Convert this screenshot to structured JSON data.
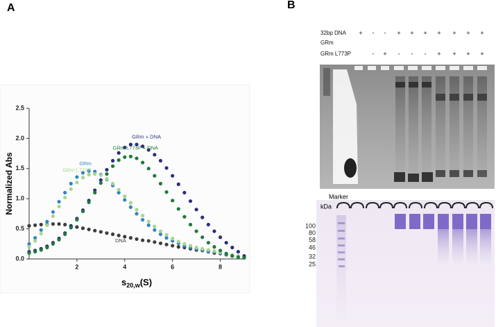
{
  "panel_a": {
    "label": "A"
  },
  "chart_data": {
    "type": "scatter",
    "y_label": "Normalized Abs",
    "x_label": {
      "main": "s",
      "subscript": "20,w",
      "suffix": "(S)"
    },
    "xlim": [
      0,
      9
    ],
    "xticks": [
      2,
      4,
      6,
      8
    ],
    "ylim": [
      0,
      2.5
    ],
    "yticks": [
      {
        "value": 0,
        "label": "0.0"
      },
      0.5,
      {
        "value": 1,
        "label": "1.0"
      },
      1.5,
      {
        "value": 2,
        "label": "2.0"
      },
      2.5
    ],
    "x": [
      0,
      0.25,
      0.5,
      0.75,
      1,
      1.25,
      1.5,
      1.75,
      2,
      2.25,
      2.5,
      2.75,
      3,
      3.25,
      3.5,
      3.75,
      4,
      4.25,
      4.5,
      4.75,
      5,
      5.25,
      5.5,
      5.75,
      6,
      6.25,
      6.5,
      6.75,
      7,
      7.25,
      7.5,
      7.75,
      8,
      8.25,
      8.5,
      8.75,
      9
    ],
    "series": [
      {
        "name": "DNA",
        "color": "#3d3d3d",
        "values": [
          0.55,
          0.56,
          0.57,
          0.57,
          0.58,
          0.58,
          0.57,
          0.55,
          0.53,
          0.51,
          0.49,
          0.47,
          0.45,
          0.43,
          0.41,
          0.39,
          0.37,
          0.35,
          0.33,
          0.31,
          0.3,
          0.28,
          0.26,
          0.24,
          0.22,
          0.2,
          0.19,
          0.17,
          0.15,
          0.14,
          0.12,
          0.1,
          0.09,
          0.07,
          0.05,
          0.04,
          0.03
        ]
      },
      {
        "name": "GRm",
        "color": "#2f86c4",
        "values": [
          0.25,
          0.35,
          0.48,
          0.62,
          0.78,
          0.95,
          1.1,
          1.25,
          1.36,
          1.43,
          1.46,
          1.45,
          1.4,
          1.32,
          1.22,
          1.1,
          0.98,
          0.86,
          0.75,
          0.65,
          0.56,
          0.48,
          0.41,
          0.35,
          0.3,
          0.26,
          0.22,
          0.19,
          0.17,
          0.15,
          0.13,
          0.12,
          0.1,
          0.08,
          0.06,
          0.04,
          0.02
        ]
      },
      {
        "name": "GRm L773P",
        "color": "#a9d48e",
        "values": [
          0.2,
          0.3,
          0.42,
          0.56,
          0.71,
          0.87,
          1.02,
          1.16,
          1.27,
          1.35,
          1.4,
          1.41,
          1.39,
          1.33,
          1.25,
          1.15,
          1.04,
          0.93,
          0.82,
          0.72,
          0.62,
          0.54,
          0.46,
          0.4,
          0.34,
          0.29,
          0.25,
          0.22,
          0.19,
          0.17,
          0.15,
          0.13,
          0.11,
          0.09,
          0.07,
          0.05,
          0.03
        ]
      },
      {
        "name": "GRm + DNA",
        "color": "#2c2f7c",
        "values": [
          0.12,
          0.14,
          0.17,
          0.21,
          0.27,
          0.34,
          0.43,
          0.54,
          0.67,
          0.81,
          0.97,
          1.14,
          1.31,
          1.48,
          1.63,
          1.76,
          1.85,
          1.9,
          1.9,
          1.87,
          1.81,
          1.73,
          1.63,
          1.51,
          1.38,
          1.24,
          1.1,
          0.96,
          0.82,
          0.69,
          0.57,
          0.46,
          0.36,
          0.27,
          0.19,
          0.12,
          0.05
        ]
      },
      {
        "name": "GRm L773P + DNA",
        "color": "#1f7a3b",
        "values": [
          0.1,
          0.12,
          0.15,
          0.19,
          0.25,
          0.32,
          0.41,
          0.52,
          0.65,
          0.79,
          0.94,
          1.1,
          1.26,
          1.41,
          1.54,
          1.64,
          1.69,
          1.7,
          1.67,
          1.6,
          1.5,
          1.38,
          1.25,
          1.11,
          0.97,
          0.83,
          0.7,
          0.57,
          0.46,
          0.36,
          0.27,
          0.2,
          0.14,
          0.09,
          0.05,
          0.03,
          0.02
        ]
      }
    ]
  },
  "panel_b": {
    "label": "B",
    "conditions": [
      {
        "label": "32bp DNA",
        "marks": [
          "+",
          "-",
          "-",
          "+",
          "+",
          "+",
          "+",
          "+",
          "+",
          "+"
        ]
      },
      {
        "label": "GRm",
        "marks": [
          null,
          null,
          null,
          null,
          null,
          null,
          null,
          null,
          null,
          null
        ]
      },
      {
        "label": "GRm L773P",
        "marks": [
          null,
          "-",
          "+",
          "-",
          "-",
          "-",
          "+",
          "+",
          "+",
          "+"
        ]
      }
    ],
    "gel2": {
      "marker_title": "Marker",
      "unit": "kDa",
      "marker_sizes": [
        "100",
        "80",
        "58",
        "46",
        "32",
        "25"
      ]
    }
  }
}
